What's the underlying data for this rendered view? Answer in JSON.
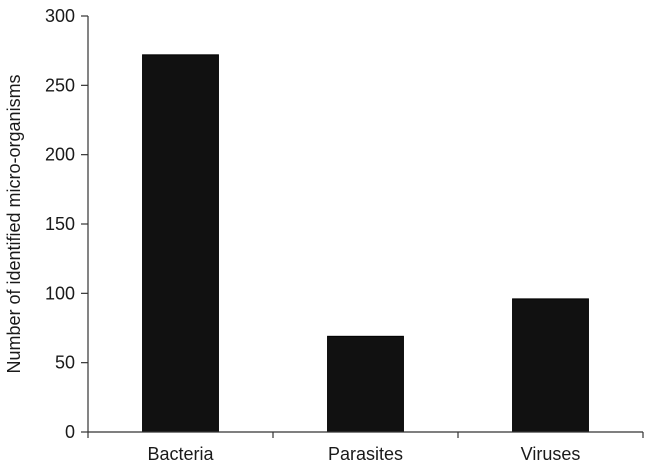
{
  "chart_data": {
    "type": "bar",
    "title": "",
    "xlabel": "",
    "ylabel": "Number of identified micro-organisms",
    "categories": [
      "Bacteria",
      "Parasites",
      "Viruses"
    ],
    "values": [
      272,
      69,
      96
    ],
    "ylim": [
      0,
      300
    ],
    "yticks": [
      0,
      50,
      100,
      150,
      200,
      250,
      300
    ],
    "grid": false,
    "legend": "none",
    "bar_color": "#111111"
  }
}
